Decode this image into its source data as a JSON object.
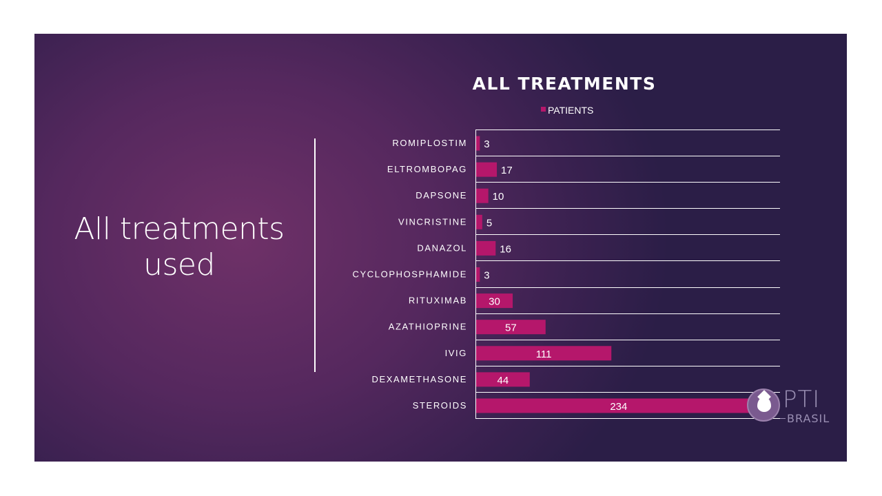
{
  "slide": {
    "heading": "All treatments used"
  },
  "logo": {
    "name": "PTI",
    "subtitle": "BRASIL"
  },
  "colors": {
    "bar": "#b5176b",
    "text": "#ffffff",
    "grid": "#ffffff"
  },
  "chart_data": {
    "type": "bar",
    "orientation": "horizontal",
    "title": "ALL TREATMENTS",
    "legend_position": "top",
    "categories": [
      "ROMIPLOSTIM",
      "ELTROMBOPAG",
      "DAPSONE",
      "VINCRISTINE",
      "DANAZOL",
      "CYCLOPHOSPHAMIDE",
      "RITUXIMAB",
      "AZATHIOPRINE",
      "IVIG",
      "DEXAMETHASONE",
      "STEROIDS"
    ],
    "series": [
      {
        "name": "PATIENTS",
        "values": [
          3,
          17,
          10,
          5,
          16,
          3,
          30,
          57,
          111,
          44,
          234
        ]
      }
    ],
    "xlim": [
      0,
      250
    ],
    "grid": true,
    "data_labels": true
  }
}
